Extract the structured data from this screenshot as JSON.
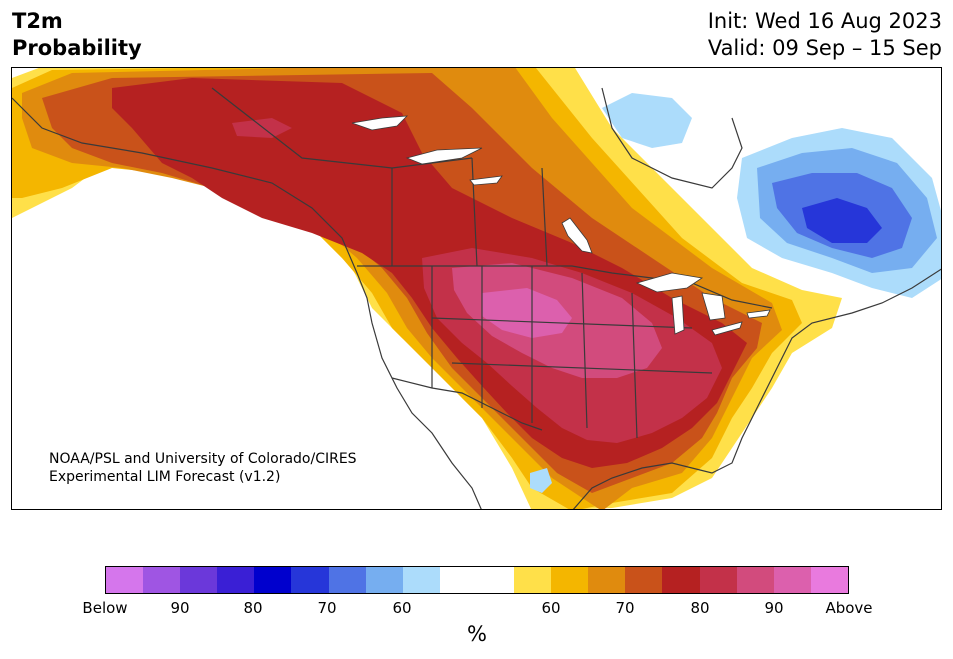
{
  "header": {
    "title_line1": "T2m",
    "title_line2": "Probability",
    "init": "Init: Wed 16 Aug 2023",
    "valid": "Valid: 09 Sep – 15 Sep"
  },
  "credit": {
    "line1": "NOAA/PSL and University of Colorado/CIRES",
    "line2": "Experimental LIM Forecast (v1.2)"
  },
  "colorbar": {
    "colors": [
      "#d576ec",
      "#9f55e3",
      "#6b38da",
      "#3a1fd5",
      "#0000cd",
      "#2636d9",
      "#4f73e5",
      "#76aef0",
      "#acdcfb",
      "#ffffff",
      "#ffffff",
      "#ffe049",
      "#f4b600",
      "#e08b0e",
      "#c9521a",
      "#b52121",
      "#c33149",
      "#d24b7d",
      "#dc60ad",
      "#e97ade"
    ],
    "tick_labels": [
      "Below",
      "90",
      "80",
      "70",
      "60",
      "60",
      "70",
      "80",
      "90",
      "Above"
    ],
    "unit": "%"
  },
  "map": {
    "region": "North America",
    "palette": {
      "p50": "#ffe049",
      "p60": "#f4b600",
      "p65": "#e08b0e",
      "p70": "#c9521a",
      "p75": "#b52121",
      "p80": "#c33149",
      "p85": "#d24b7d",
      "p90": "#dc60ad",
      "b50": "#acdcfb",
      "b60": "#76aef0",
      "b65": "#4f73e5",
      "b70": "#2636d9",
      "land_line": "#3a3a3a",
      "water": "#ffffff"
    }
  }
}
